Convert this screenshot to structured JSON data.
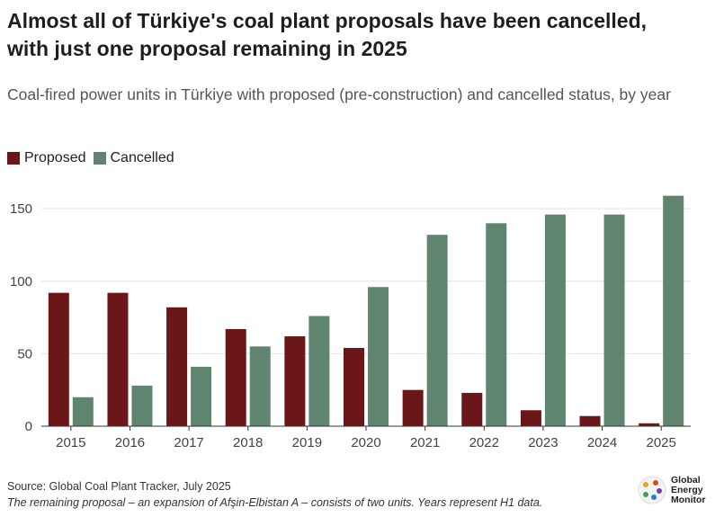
{
  "header": {
    "title": "Almost all of Türkiye's coal plant proposals have been cancelled, with just one proposal remaining in 2025",
    "subtitle": "Coal-fired power units in Türkiye with proposed (pre-construction) and cancelled status, by year"
  },
  "colors": {
    "proposed": "#6b1618",
    "cancelled": "#5f8470",
    "grid": "#e4e4e4",
    "axis": "#333333"
  },
  "chart_data": {
    "type": "bar",
    "categories": [
      "2015",
      "2016",
      "2017",
      "2018",
      "2019",
      "2020",
      "2021",
      "2022",
      "2023",
      "2024",
      "2025"
    ],
    "series": [
      {
        "name": "Proposed",
        "values": [
          92,
          92,
          82,
          67,
          62,
          54,
          25,
          23,
          11,
          7,
          2
        ]
      },
      {
        "name": "Cancelled",
        "values": [
          20,
          28,
          41,
          55,
          76,
          96,
          132,
          140,
          146,
          146,
          159
        ]
      }
    ],
    "ylim": [
      0,
      165
    ],
    "yticks": [
      0,
      50,
      100,
      150
    ],
    "grid": true,
    "legend_position": "top-left"
  },
  "footer": {
    "source": "Source: Global Coal Plant Tracker, July 2025",
    "note": "The remaining proposal – an expansion of Afşin-Elbistan A – consists of two units. Years represent H1 data."
  },
  "logo": {
    "line1": "Global",
    "line2": "Energy",
    "line3": "Monitor"
  }
}
